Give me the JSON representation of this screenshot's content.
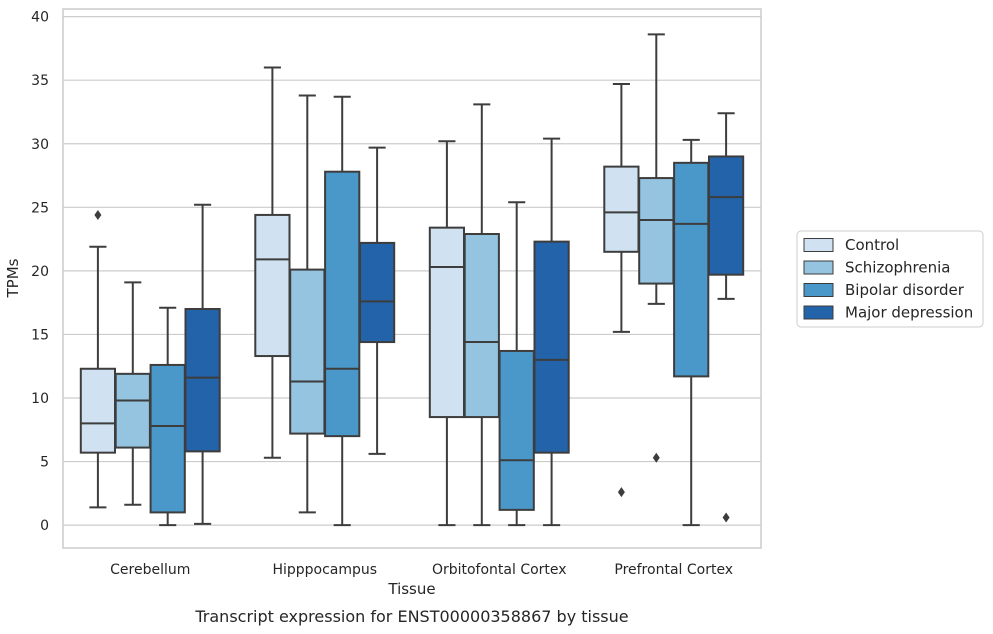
{
  "caption": "Transcript expression for ENST00000358867 by tissue",
  "chart_data": {
    "type": "box",
    "xlabel": "Tissue",
    "ylabel": "TPMs",
    "ylim": [
      -1.8,
      40.6
    ],
    "yticks": [
      0,
      5,
      10,
      15,
      20,
      25,
      30,
      35,
      40
    ],
    "grid": "horizontal",
    "legend_position": "right",
    "categories": [
      "Cerebellum",
      "Hipppocampus",
      "Orbitofontal Cortex",
      "Prefrontal Cortex"
    ],
    "series": [
      {
        "name": "Control",
        "color": "#d0e1f2",
        "boxes": [
          {
            "whisker_low": 1.4,
            "q1": 5.7,
            "median": 8.0,
            "q3": 12.3,
            "whisker_high": 21.9,
            "outliers": [
              24.4
            ]
          },
          {
            "whisker_low": 5.3,
            "q1": 13.3,
            "median": 20.9,
            "q3": 24.4,
            "whisker_high": 36.0,
            "outliers": []
          },
          {
            "whisker_low": 0.0,
            "q1": 8.5,
            "median": 20.3,
            "q3": 23.4,
            "whisker_high": 30.2,
            "outliers": []
          },
          {
            "whisker_low": 15.2,
            "q1": 21.5,
            "median": 24.6,
            "q3": 28.2,
            "whisker_high": 34.7,
            "outliers": [
              2.6
            ]
          }
        ]
      },
      {
        "name": "Schizophrenia",
        "color": "#94c4df",
        "boxes": [
          {
            "whisker_low": 1.6,
            "q1": 6.1,
            "median": 9.8,
            "q3": 11.9,
            "whisker_high": 19.1,
            "outliers": []
          },
          {
            "whisker_low": 1.0,
            "q1": 7.2,
            "median": 11.3,
            "q3": 20.1,
            "whisker_high": 33.8,
            "outliers": []
          },
          {
            "whisker_low": 0.0,
            "q1": 8.5,
            "median": 14.4,
            "q3": 22.9,
            "whisker_high": 33.1,
            "outliers": []
          },
          {
            "whisker_low": 17.4,
            "q1": 19.0,
            "median": 24.0,
            "q3": 27.3,
            "whisker_high": 38.6,
            "outliers": [
              5.3
            ]
          }
        ]
      },
      {
        "name": "Bipolar disorder",
        "color": "#4a98c9",
        "boxes": [
          {
            "whisker_low": 0.0,
            "q1": 1.0,
            "median": 7.8,
            "q3": 12.6,
            "whisker_high": 17.1,
            "outliers": []
          },
          {
            "whisker_low": 0.0,
            "q1": 7.0,
            "median": 12.3,
            "q3": 27.8,
            "whisker_high": 33.7,
            "outliers": []
          },
          {
            "whisker_low": 0.0,
            "q1": 1.2,
            "median": 5.1,
            "q3": 13.7,
            "whisker_high": 25.4,
            "outliers": []
          },
          {
            "whisker_low": 0.0,
            "q1": 11.7,
            "median": 23.7,
            "q3": 28.5,
            "whisker_high": 30.3,
            "outliers": []
          }
        ]
      },
      {
        "name": "Major depression",
        "color": "#2363a9",
        "boxes": [
          {
            "whisker_low": 0.1,
            "q1": 5.8,
            "median": 11.6,
            "q3": 17.0,
            "whisker_high": 25.2,
            "outliers": []
          },
          {
            "whisker_low": 5.6,
            "q1": 14.4,
            "median": 17.6,
            "q3": 22.2,
            "whisker_high": 29.7,
            "outliers": []
          },
          {
            "whisker_low": 0.0,
            "q1": 5.7,
            "median": 13.0,
            "q3": 22.3,
            "whisker_high": 30.4,
            "outliers": []
          },
          {
            "whisker_low": 17.8,
            "q1": 19.7,
            "median": 25.8,
            "q3": 29.0,
            "whisker_high": 32.4,
            "outliers": [
              0.6
            ]
          }
        ]
      }
    ]
  }
}
